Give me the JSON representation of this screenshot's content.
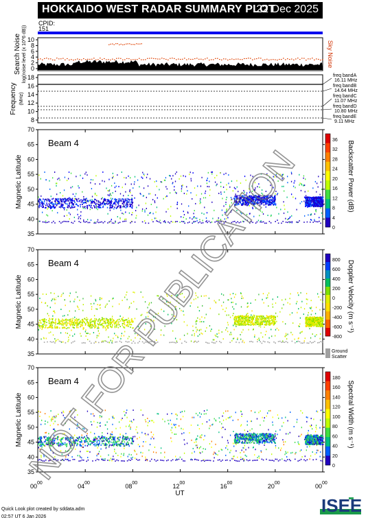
{
  "header": {
    "title": "HOKKAIDO WEST RADAR SUMMARY PLOT",
    "date": "22 Dec 2025"
  },
  "cpid": {
    "label": "CPID:",
    "value": "151"
  },
  "watermark": "NOT FOR PUBLICATION",
  "noise_panel": {
    "ylabel": "Search Noise",
    "sublabel": "log(noise level (x 10^6 dB))",
    "right_label": "Sky Noise",
    "yticks": [
      "10",
      "8",
      "6",
      "4",
      "2",
      "0"
    ]
  },
  "freq_panel": {
    "ylabel": "Frequency",
    "unit": "(MHz)",
    "yticks": [
      "18",
      "16",
      "14",
      "12",
      "10",
      "8"
    ],
    "bands": [
      {
        "name": "freq bandA",
        "value": "16.11 MHz"
      },
      {
        "name": "freq bandB",
        "value": "14.64 MHz"
      },
      {
        "name": "freq bandC",
        "value": "11.07 MHz"
      },
      {
        "name": "freq bandD",
        "value": "10.80 MHz"
      },
      {
        "name": "freq bandE",
        "value": "9.11 MHz"
      }
    ]
  },
  "panels": [
    {
      "beam": "Beam  4",
      "ylabel": "Magnetic Latitude",
      "colorbar_label": "Backscatter Power (dB)",
      "colorbar_ticks": [
        "36",
        "32",
        "28",
        "24",
        "20",
        "16",
        "12",
        "8",
        "4",
        "0"
      ],
      "colorbar_colors": [
        "#e00000",
        "#ff4000",
        "#ff8000",
        "#ffc000",
        "#ffff00",
        "#c0ff00",
        "#40e040",
        "#00c080",
        "#0060ff",
        "#2000c0"
      ]
    },
    {
      "beam": "Beam  4",
      "ylabel": "Magnetic Latitude",
      "colorbar_label": "Doppler Velocity (m s⁻¹)",
      "colorbar_ticks": [
        "800",
        "600",
        "400",
        "200",
        "0",
        "-200",
        "-400",
        "-600",
        "-800"
      ],
      "colorbar_colors": [
        "#2000c0",
        "#0040ff",
        "#0090c0",
        "#00c060",
        "#80e000",
        "#e0f000",
        "#ffe000",
        "#ffb000",
        "#ff6000",
        "#e00000"
      ],
      "ground_label": "Ground",
      "ground_label2": "Scatter"
    },
    {
      "beam": "Beam  4",
      "ylabel": "Magnetic Latitude",
      "colorbar_label": "Spectral Width (m s⁻¹)",
      "colorbar_ticks": [
        "180",
        "160",
        "140",
        "120",
        "100",
        "80",
        "60",
        "40",
        "20",
        "0"
      ],
      "colorbar_colors": [
        "#e00000",
        "#ff4000",
        "#ff8000",
        "#ffc000",
        "#ffff00",
        "#c0ff00",
        "#40e040",
        "#00c080",
        "#0060ff",
        "#2000c0"
      ]
    }
  ],
  "lat_ticks": [
    "70",
    "65",
    "60",
    "55",
    "50",
    "45",
    "40",
    "35"
  ],
  "xaxis": {
    "label": "UT",
    "ticks": [
      {
        "h": "00",
        "m": "00"
      },
      {
        "h": "04",
        "m": "00"
      },
      {
        "h": "08",
        "m": "00"
      },
      {
        "h": "12",
        "m": "00"
      },
      {
        "h": "16",
        "m": "00"
      },
      {
        "h": "20",
        "m": "00"
      },
      {
        "h": "00",
        "m": "00"
      }
    ]
  },
  "chart_data": {
    "type": "heatmap",
    "x_range_hours": [
      0,
      24
    ],
    "lat_range": [
      35,
      70
    ],
    "scatter_region_lat": [
      39,
      56
    ],
    "echo_bands": [
      {
        "t_start": 0.0,
        "t_end": 8.0,
        "lat": 45.5,
        "note": "strong echoes"
      },
      {
        "t_start": 16.5,
        "t_end": 20.0,
        "lat": 46.5,
        "note": "strong echoes"
      },
      {
        "t_start": 22.5,
        "t_end": 24.0,
        "lat": 46.0,
        "note": "strong echoes"
      }
    ]
  },
  "footer": {
    "line1": "Quick Look plot created by sddata.adm",
    "line2": "02:57 UT  6 Jan 2026",
    "logo": "ISEE"
  }
}
